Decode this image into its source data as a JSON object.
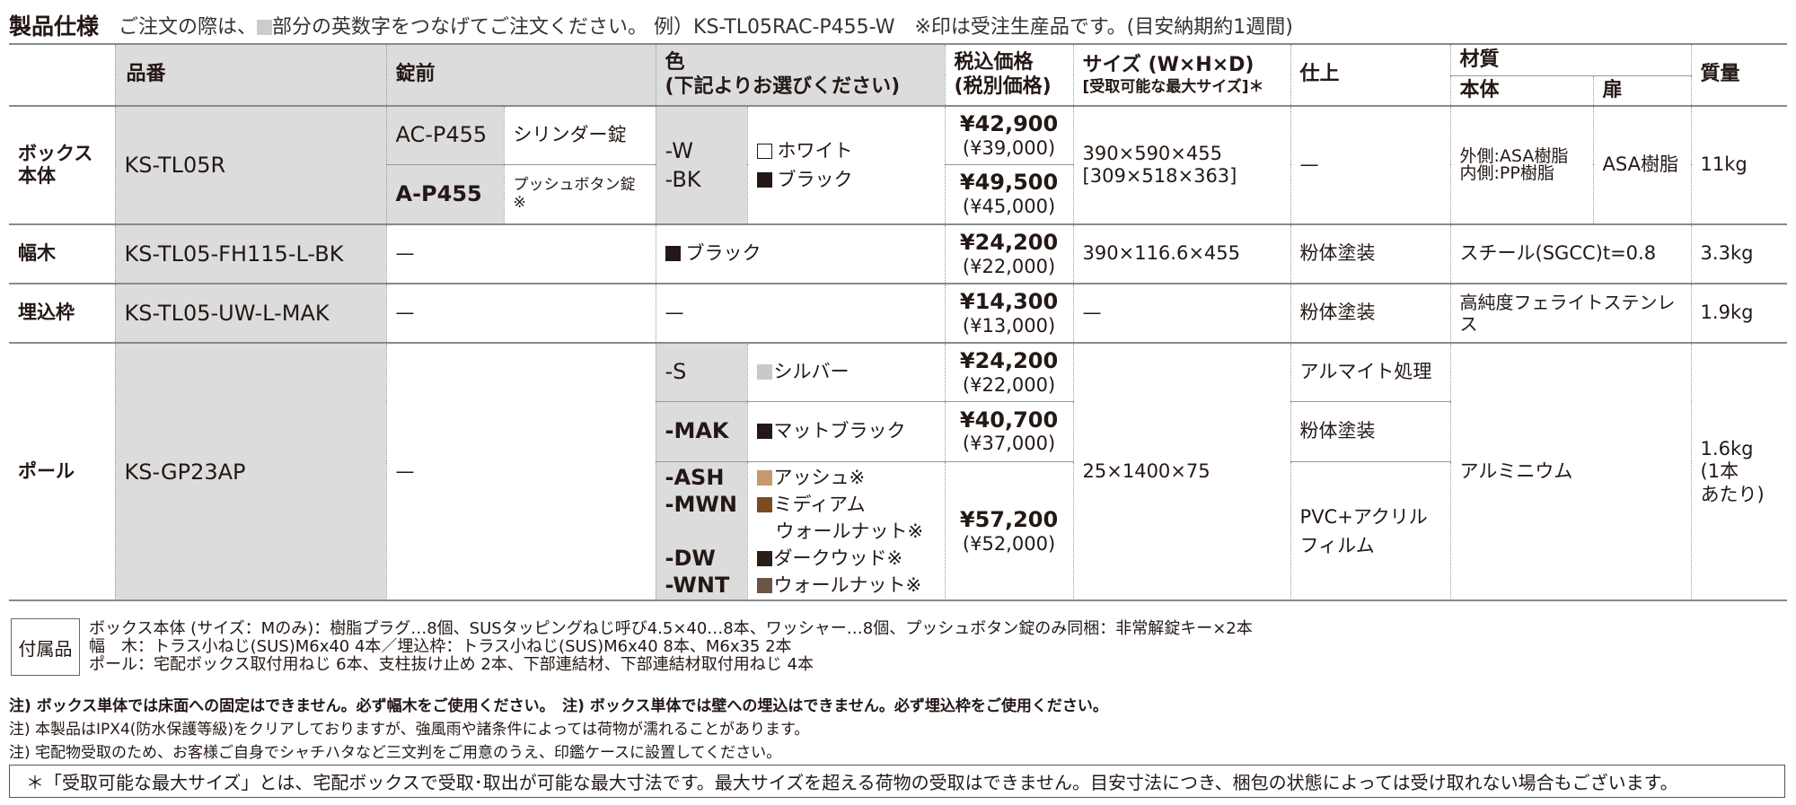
{
  "title": {
    "label": "製品仕様",
    "note1": "ご注文の際は、",
    "note2": "部分の英数字をつなげてご注文ください。 例）KS-TL05RAC-P455-W　※印は受注生産品です。(目安納期約1週間)"
  },
  "header": {
    "part": "品番",
    "lock": "錠前",
    "color": "色",
    "color_sub": "(下記よりお選びください)",
    "price": "税込価格",
    "price_sub": "(税別価格)",
    "size": "サイズ (W×H×D)",
    "size_sub": "[受取可能な最大サイズ]＊",
    "finish": "仕上",
    "material": "材質",
    "body": "本体",
    "door": "扉",
    "weight": "質量"
  },
  "rows": {
    "box": {
      "name": "ボックス本体",
      "part": "KS-TL05R",
      "locks": [
        {
          "code": "AC-P455",
          "name": "シリンダー錠"
        },
        {
          "code": "A-P455",
          "name": "プッシュボタン錠※"
        }
      ],
      "color_codes": [
        "-W",
        "-BK"
      ],
      "colors": [
        {
          "name": "ホワイト",
          "swatch": "#ffffff"
        },
        {
          "name": "ブラック",
          "swatch": "#231815"
        }
      ],
      "prices": [
        {
          "tax": "¥42,900",
          "net": "(¥39,000)"
        },
        {
          "tax": "¥49,500",
          "net": "(¥45,000)"
        }
      ],
      "size": "390×590×455",
      "size_max": "[309×518×363]",
      "finish": "—",
      "body_mat1": "外側:ASA樹脂",
      "body_mat2": "内側:PP樹脂",
      "door_mat": "ASA樹脂",
      "weight": "11kg"
    },
    "base": {
      "name": "幅木",
      "part": "KS-TL05-FH115-L-BK",
      "lock": "—",
      "color": "ブラック",
      "swatch": "#231815",
      "price_tax": "¥24,200",
      "price_net": "(¥22,000)",
      "size": "390×116.6×455",
      "finish": "粉体塗装",
      "material": "スチール(SGCC)t=0.8",
      "weight": "3.3kg"
    },
    "frame": {
      "name": "埋込枠",
      "part": "KS-TL05-UW-L-MAK",
      "lock": "—",
      "color": "—",
      "price_tax": "¥14,300",
      "price_net": "(¥13,000)",
      "size": "—",
      "finish": "粉体塗装",
      "material": "高純度フェライトステンレス",
      "weight": "1.9kg"
    },
    "pole": {
      "name": "ポール",
      "part": "KS-GP23AP",
      "lock": "—",
      "size": "25×1400×75",
      "material": "アルミニウム",
      "weight": "1.6kg",
      "weight_sub1": "(1本",
      "weight_sub2": "あたり)",
      "variants": [
        {
          "codes": [
            "-S"
          ],
          "colors": [
            {
              "name": "シルバー",
              "swatch": "#c8c9ca"
            }
          ],
          "price_tax": "¥24,200",
          "price_net": "(¥22,000)",
          "finish": "アルマイト処理"
        },
        {
          "codes": [
            "-MAK"
          ],
          "colors": [
            {
              "name": "マットブラック",
              "swatch": "#231815"
            }
          ],
          "price_tax": "¥40,700",
          "price_net": "(¥37,000)",
          "finish": "粉体塗装"
        },
        {
          "codes": [
            "-ASH",
            "-MWN",
            "",
            "-DW",
            "-WNT"
          ],
          "colors": [
            {
              "name": "アッシュ※",
              "swatch": "#c49a6c"
            },
            {
              "name": "ミディアム",
              "swatch": "#7b4a1e"
            },
            {
              "name": "ウォールナット※",
              "swatch": ""
            },
            {
              "name": "ダークウッド※",
              "swatch": "#2a1e19"
            },
            {
              "name": "ウォールナット※",
              "swatch": "#6b5445"
            }
          ],
          "price_tax": "¥57,200",
          "price_net": "(¥52,000)",
          "finish1": "PVC+アクリル",
          "finish2": "フィルム"
        }
      ]
    }
  },
  "accessories": {
    "label": "付属品",
    "lines": [
      "ボックス本体 (サイズ：Mのみ)：樹脂プラグ…8個、SUSタッピングねじ呼び4.5×40…8本、ワッシャー…8個、プッシュボタン錠のみ同梱：非常解錠キー×2本",
      "幅　木：トラス小ねじ(SUS)M6x40 4本／埋込枠：トラス小ねじ(SUS)M6x40 8本、M6x35 2本",
      "ポール：宅配ボックス取付用ねじ 6本、支柱抜け止め 2本、下部連結材、下部連結材取付用ねじ 4本"
    ]
  },
  "notes": [
    "注) ボックス単体では床面への固定はできません。必ず幅木をご使用ください。　注) ボックス単体では壁への埋込はできません。必ず埋込枠をご使用ください。",
    "注) 本製品はIPX4(防水保護等級)をクリアしておりますが、強風雨や諸条件によっては荷物が濡れることがあります。",
    "注) 宅配物受取のため、お客様ご自身でシャチハタなど三文判をご用意のうえ、印鑑ケースに設置してください。"
  ],
  "footnote": "＊「受取可能な最大サイズ」とは、宅配ボックスで受取･取出が可能な最大寸法です。最大サイズを超える荷物の受取はできません。目安寸法につき、梱包の状態によっては受け取れない場合もございます。",
  "colors": {
    "header_gray": "#dcdcdc",
    "text": "#231815"
  }
}
